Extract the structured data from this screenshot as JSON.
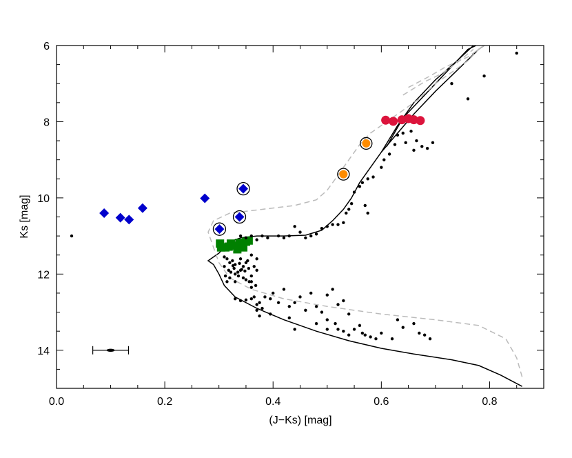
{
  "chart_data": {
    "type": "scatter",
    "title": "",
    "xlabel": "(J−Ks) [mag]",
    "ylabel": "Ks [mag]",
    "xlim": [
      0.0,
      0.9
    ],
    "ylim": [
      15,
      6
    ],
    "y_inverted": true,
    "x_ticks": [
      0.0,
      0.2,
      0.4,
      0.6,
      0.8
    ],
    "x_tick_labels": [
      "0.0",
      "0.2",
      "0.4",
      "0.6",
      "0.8"
    ],
    "y_ticks": [
      6,
      8,
      10,
      12,
      14
    ],
    "y_tick_labels": [
      "6",
      "8",
      "10",
      "12",
      "14"
    ],
    "grid": false,
    "series": [
      {
        "name": "blue-diamonds",
        "marker": "diamond",
        "color": "#0000cc",
        "points": [
          [
            0.088,
            10.4
          ],
          [
            0.118,
            10.52
          ],
          [
            0.134,
            10.57
          ],
          [
            0.159,
            10.27
          ],
          [
            0.274,
            10.01
          ],
          [
            0.301,
            10.82
          ],
          [
            0.338,
            10.5
          ],
          [
            0.345,
            9.76
          ]
        ]
      },
      {
        "name": "blue-diamonds-circled",
        "marker": "circle-outline",
        "color": "#000000",
        "points": [
          [
            0.301,
            10.82
          ],
          [
            0.338,
            10.5
          ],
          [
            0.345,
            9.76
          ]
        ]
      },
      {
        "name": "orange-circles",
        "marker": "circle-outlined",
        "color": "#ff8c00",
        "points": [
          [
            0.53,
            9.38
          ],
          [
            0.572,
            8.57
          ]
        ]
      },
      {
        "name": "red-circles",
        "marker": "circle",
        "color": "#dc143c",
        "points": [
          [
            0.608,
            7.96
          ],
          [
            0.622,
            7.99
          ],
          [
            0.638,
            7.95
          ],
          [
            0.65,
            7.92
          ],
          [
            0.66,
            7.95
          ],
          [
            0.672,
            7.97
          ]
        ]
      },
      {
        "name": "green-squares",
        "marker": "square",
        "color": "#008000",
        "points": [
          [
            0.302,
            11.2
          ],
          [
            0.304,
            11.3
          ],
          [
            0.312,
            11.3
          ],
          [
            0.318,
            11.28
          ],
          [
            0.322,
            11.2
          ],
          [
            0.328,
            11.25
          ],
          [
            0.334,
            11.35
          ],
          [
            0.338,
            11.18
          ],
          [
            0.345,
            11.3
          ],
          [
            0.35,
            11.15
          ],
          [
            0.355,
            11.12
          ]
        ]
      },
      {
        "name": "black-dots",
        "marker": "dot",
        "color": "#000000",
        "points": [
          [
            0.028,
            11.0
          ],
          [
            0.31,
            11.55
          ],
          [
            0.315,
            11.6
          ],
          [
            0.32,
            11.7
          ],
          [
            0.325,
            11.65
          ],
          [
            0.33,
            11.75
          ],
          [
            0.34,
            11.6
          ],
          [
            0.345,
            11.8
          ],
          [
            0.35,
            11.7
          ],
          [
            0.355,
            11.85
          ],
          [
            0.36,
            11.5
          ],
          [
            0.31,
            11.8
          ],
          [
            0.318,
            11.9
          ],
          [
            0.322,
            11.95
          ],
          [
            0.33,
            12.0
          ],
          [
            0.336,
            12.05
          ],
          [
            0.34,
            11.9
          ],
          [
            0.345,
            12.1
          ],
          [
            0.35,
            12.15
          ],
          [
            0.32,
            12.1
          ],
          [
            0.315,
            12.2
          ],
          [
            0.33,
            12.2
          ],
          [
            0.335,
            11.95
          ],
          [
            0.342,
            11.88
          ],
          [
            0.348,
            11.92
          ],
          [
            0.356,
            12.2
          ],
          [
            0.36,
            12.05
          ],
          [
            0.365,
            11.8
          ],
          [
            0.37,
            11.6
          ],
          [
            0.37,
            11.9
          ],
          [
            0.338,
            11.72
          ],
          [
            0.328,
            11.85
          ],
          [
            0.312,
            12.05
          ],
          [
            0.326,
            11.78
          ],
          [
            0.353,
            11.65
          ],
          [
            0.368,
            12.3
          ],
          [
            0.36,
            12.35
          ],
          [
            0.33,
            12.65
          ],
          [
            0.34,
            12.7
          ],
          [
            0.35,
            12.68
          ],
          [
            0.36,
            12.65
          ],
          [
            0.365,
            12.6
          ],
          [
            0.37,
            12.8
          ],
          [
            0.375,
            12.75
          ],
          [
            0.38,
            12.9
          ],
          [
            0.385,
            12.6
          ],
          [
            0.395,
            12.65
          ],
          [
            0.4,
            12.5
          ],
          [
            0.41,
            12.75
          ],
          [
            0.42,
            12.4
          ],
          [
            0.43,
            12.85
          ],
          [
            0.44,
            12.75
          ],
          [
            0.45,
            12.6
          ],
          [
            0.46,
            12.95
          ],
          [
            0.47,
            12.5
          ],
          [
            0.48,
            12.85
          ],
          [
            0.49,
            13.0
          ],
          [
            0.5,
            12.55
          ],
          [
            0.51,
            12.4
          ],
          [
            0.52,
            12.8
          ],
          [
            0.53,
            12.7
          ],
          [
            0.5,
            13.45
          ],
          [
            0.515,
            13.3
          ],
          [
            0.53,
            13.5
          ],
          [
            0.54,
            13.6
          ],
          [
            0.55,
            13.45
          ],
          [
            0.56,
            13.35
          ],
          [
            0.565,
            13.55
          ],
          [
            0.57,
            13.6
          ],
          [
            0.58,
            13.65
          ],
          [
            0.59,
            13.7
          ],
          [
            0.6,
            13.55
          ],
          [
            0.62,
            13.7
          ],
          [
            0.63,
            13.2
          ],
          [
            0.64,
            13.4
          ],
          [
            0.66,
            13.3
          ],
          [
            0.67,
            13.55
          ],
          [
            0.68,
            13.6
          ],
          [
            0.69,
            13.7
          ],
          [
            0.54,
            13.05
          ],
          [
            0.52,
            13.45
          ],
          [
            0.5,
            13.2
          ],
          [
            0.48,
            13.3
          ],
          [
            0.44,
            13.45
          ],
          [
            0.43,
            13.15
          ],
          [
            0.395,
            13.05
          ],
          [
            0.375,
            13.1
          ],
          [
            0.37,
            12.95
          ],
          [
            0.36,
            12.2
          ],
          [
            0.34,
            11.0
          ],
          [
            0.35,
            11.05
          ],
          [
            0.36,
            11.0
          ],
          [
            0.37,
            11.1
          ],
          [
            0.38,
            11.0
          ],
          [
            0.39,
            11.05
          ],
          [
            0.41,
            11.0
          ],
          [
            0.42,
            11.05
          ],
          [
            0.43,
            11.0
          ],
          [
            0.44,
            10.75
          ],
          [
            0.45,
            10.9
          ],
          [
            0.46,
            11.05
          ],
          [
            0.47,
            11.0
          ],
          [
            0.48,
            10.95
          ],
          [
            0.49,
            10.8
          ],
          [
            0.5,
            10.75
          ],
          [
            0.51,
            10.7
          ],
          [
            0.52,
            10.7
          ],
          [
            0.53,
            10.65
          ],
          [
            0.535,
            10.4
          ],
          [
            0.54,
            10.3
          ],
          [
            0.545,
            10.15
          ],
          [
            0.55,
            9.85
          ],
          [
            0.56,
            9.7
          ],
          [
            0.565,
            9.6
          ],
          [
            0.575,
            9.5
          ],
          [
            0.585,
            9.45
          ],
          [
            0.6,
            9.2
          ],
          [
            0.605,
            9.0
          ],
          [
            0.615,
            8.85
          ],
          [
            0.625,
            8.6
          ],
          [
            0.63,
            8.35
          ],
          [
            0.64,
            8.3
          ],
          [
            0.645,
            8.55
          ],
          [
            0.655,
            8.25
          ],
          [
            0.66,
            8.75
          ],
          [
            0.665,
            8.5
          ],
          [
            0.675,
            8.65
          ],
          [
            0.685,
            8.7
          ],
          [
            0.695,
            8.55
          ],
          [
            0.57,
            10.2
          ],
          [
            0.575,
            10.4
          ],
          [
            0.73,
            7.0
          ],
          [
            0.76,
            7.4
          ],
          [
            0.79,
            6.8
          ],
          [
            0.85,
            6.2
          ]
        ]
      }
    ],
    "curves": [
      {
        "name": "isochrone-solid-main",
        "style": "solid",
        "color": "#000000",
        "points": [
          [
            0.86,
            14.95
          ],
          [
            0.82,
            14.65
          ],
          [
            0.78,
            14.4
          ],
          [
            0.73,
            14.25
          ],
          [
            0.66,
            14.1
          ],
          [
            0.6,
            13.95
          ],
          [
            0.54,
            13.75
          ],
          [
            0.48,
            13.5
          ],
          [
            0.42,
            13.2
          ],
          [
            0.37,
            12.9
          ],
          [
            0.33,
            12.6
          ],
          [
            0.31,
            12.3
          ],
          [
            0.3,
            12.0
          ],
          [
            0.29,
            11.75
          ],
          [
            0.28,
            11.65
          ],
          [
            0.29,
            11.55
          ],
          [
            0.3,
            11.45
          ],
          [
            0.31,
            11.3
          ],
          [
            0.32,
            11.15
          ],
          [
            0.34,
            11.05
          ],
          [
            0.37,
            11.0
          ],
          [
            0.42,
            11.0
          ],
          [
            0.46,
            10.98
          ],
          [
            0.49,
            10.85
          ],
          [
            0.51,
            10.6
          ],
          [
            0.53,
            10.3
          ],
          [
            0.545,
            10.0
          ],
          [
            0.56,
            9.6
          ],
          [
            0.58,
            9.2
          ],
          [
            0.6,
            8.8
          ],
          [
            0.63,
            8.3
          ],
          [
            0.66,
            7.8
          ],
          [
            0.7,
            7.2
          ],
          [
            0.74,
            6.65
          ],
          [
            0.78,
            6.1
          ],
          [
            0.79,
            6.0
          ]
        ]
      },
      {
        "name": "isochrone-solid-upper-1",
        "style": "solid",
        "color": "#000000",
        "points": [
          [
            0.6,
            8.8
          ],
          [
            0.63,
            8.1
          ],
          [
            0.66,
            7.5
          ],
          [
            0.7,
            6.9
          ],
          [
            0.74,
            6.4
          ],
          [
            0.77,
            6.0
          ]
        ]
      },
      {
        "name": "isochrone-solid-upper-2",
        "style": "solid",
        "color": "#000000",
        "points": [
          [
            0.61,
            8.65
          ],
          [
            0.64,
            7.9
          ],
          [
            0.68,
            7.3
          ],
          [
            0.72,
            6.7
          ],
          [
            0.76,
            6.1
          ],
          [
            0.775,
            6.0
          ]
        ]
      },
      {
        "name": "isochrone-dashed-lower",
        "style": "dashed",
        "color": "#bbbbbb",
        "points": [
          [
            0.86,
            14.7
          ],
          [
            0.85,
            14.2
          ],
          [
            0.83,
            13.7
          ],
          [
            0.78,
            13.35
          ],
          [
            0.7,
            13.2
          ],
          [
            0.6,
            13.05
          ],
          [
            0.5,
            12.85
          ],
          [
            0.42,
            12.65
          ],
          [
            0.36,
            12.4
          ],
          [
            0.32,
            12.1
          ],
          [
            0.3,
            11.7
          ],
          [
            0.29,
            11.3
          ],
          [
            0.28,
            10.9
          ],
          [
            0.29,
            10.6
          ],
          [
            0.32,
            10.4
          ],
          [
            0.38,
            10.3
          ],
          [
            0.44,
            10.2
          ],
          [
            0.48,
            10.05
          ],
          [
            0.5,
            9.8
          ],
          [
            0.52,
            9.4
          ],
          [
            0.54,
            9.0
          ],
          [
            0.56,
            8.6
          ],
          [
            0.58,
            8.3
          ],
          [
            0.61,
            8.0
          ],
          [
            0.64,
            7.7
          ],
          [
            0.67,
            7.4
          ],
          [
            0.7,
            7.0
          ],
          [
            0.73,
            6.7
          ],
          [
            0.76,
            6.4
          ],
          [
            0.78,
            6.1
          ],
          [
            0.79,
            6.0
          ]
        ]
      },
      {
        "name": "isochrone-dashed-upper",
        "style": "dashed",
        "color": "#bbbbbb",
        "points": [
          [
            0.65,
            7.1
          ],
          [
            0.69,
            6.8
          ],
          [
            0.72,
            6.55
          ],
          [
            0.76,
            6.3
          ],
          [
            0.79,
            6.0
          ]
        ]
      },
      {
        "name": "isochrone-dashed-upper-2",
        "style": "dashed",
        "color": "#bbbbbb",
        "points": [
          [
            0.64,
            7.3
          ],
          [
            0.68,
            6.95
          ],
          [
            0.71,
            6.75
          ],
          [
            0.74,
            6.45
          ],
          [
            0.77,
            6.1
          ]
        ]
      }
    ],
    "error_bar": {
      "x": 0.1,
      "y": 14.0,
      "xerr": 0.033
    }
  }
}
